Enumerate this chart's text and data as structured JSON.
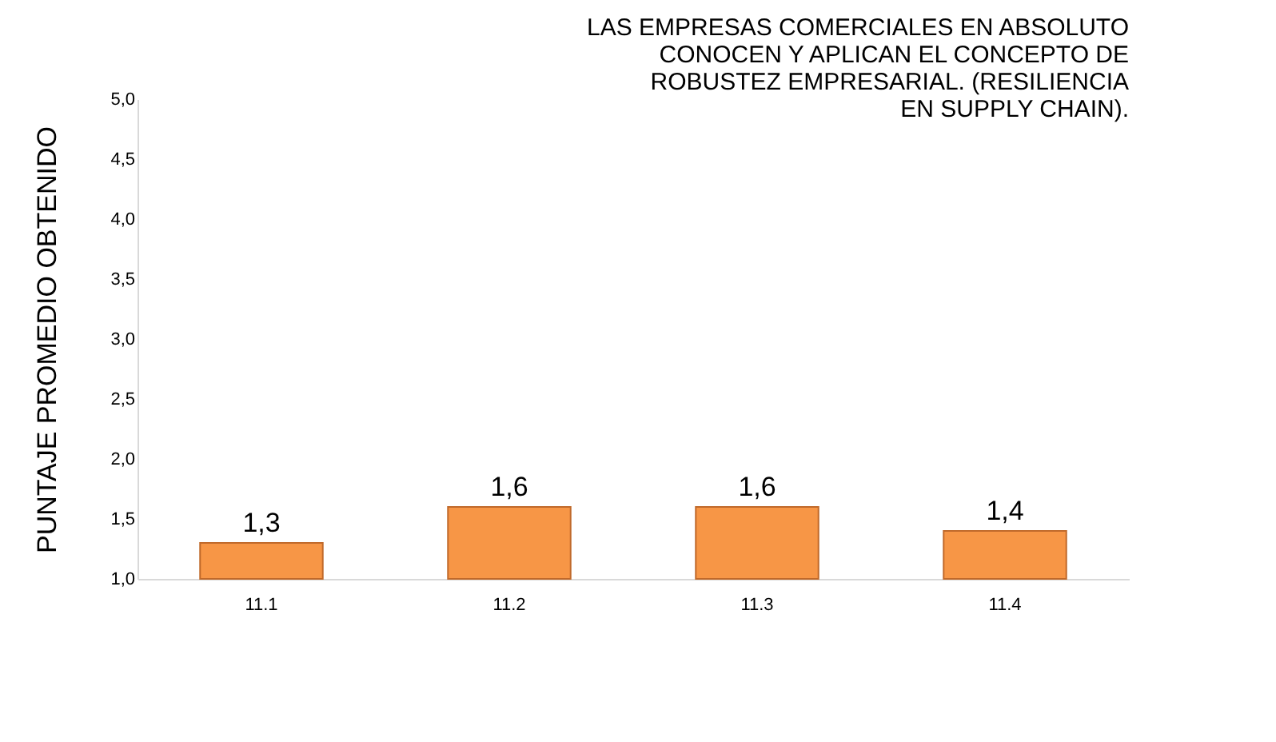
{
  "chart_data": {
    "type": "bar",
    "title": "LAS EMPRESAS COMERCIALES EN ABSOLUTO CONOCEN Y APLICAN EL CONCEPTO DE ROBUSTEZ EMPRESARIAL. (RESILIENCIA EN SUPPLY CHAIN).",
    "ylabel": "PUNTAJE  PROMEDIO  OBTENIDO",
    "categories": [
      "11.1",
      "11.2",
      "11.3",
      "11.4"
    ],
    "values": [
      1.3,
      1.6,
      1.6,
      1.4
    ],
    "value_labels": [
      "1,3",
      "1,6",
      "1,6",
      "1,4"
    ],
    "color": "#f79646",
    "ylim": [
      1,
      5
    ],
    "yticks": [
      {
        "value": 1,
        "label": "1,0"
      },
      {
        "value": 1.5,
        "label": "1,5"
      },
      {
        "value": 2,
        "label": "2,0"
      },
      {
        "value": 2.5,
        "label": "2,5"
      },
      {
        "value": 3,
        "label": "3,0"
      },
      {
        "value": 3.5,
        "label": "3,5"
      },
      {
        "value": 4,
        "label": "4,0"
      },
      {
        "value": 4.5,
        "label": "4,5"
      },
      {
        "value": 5,
        "label": "5,0"
      }
    ]
  }
}
